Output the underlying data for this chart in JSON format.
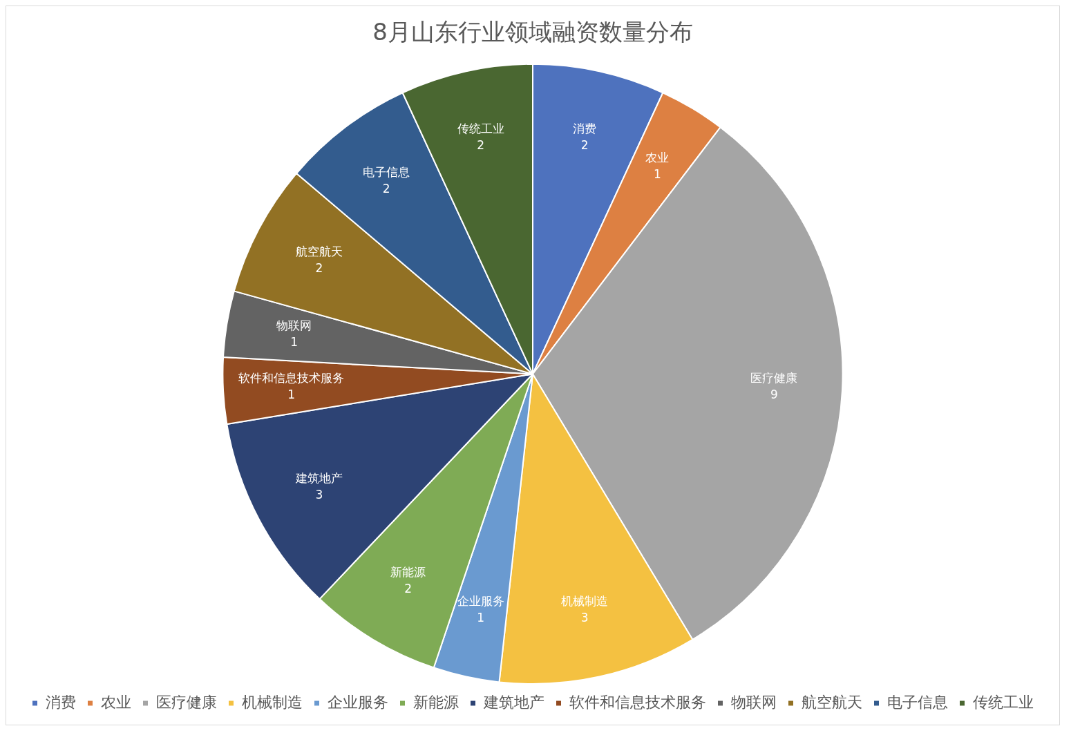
{
  "chart_data": {
    "type": "pie",
    "title": "8月山东行业领域融资数量分布",
    "categories": [
      "消费",
      "农业",
      "医疗健康",
      "机械制造",
      "企业服务",
      "新能源",
      "建筑地产",
      "软件和信息技术服务",
      "物联网",
      "航空航天",
      "电子信息",
      "传统工业"
    ],
    "values": [
      2,
      1,
      9,
      3,
      1,
      2,
      3,
      1,
      1,
      2,
      2,
      2
    ],
    "colors": [
      "#4e72be",
      "#dd8042",
      "#a5a5a5",
      "#f4c141",
      "#6a9ad0",
      "#7fab55",
      "#2d4374",
      "#924b21",
      "#636363",
      "#927124",
      "#335c8e",
      "#4a6731"
    ],
    "data_labels": true,
    "legend": "bottom"
  }
}
